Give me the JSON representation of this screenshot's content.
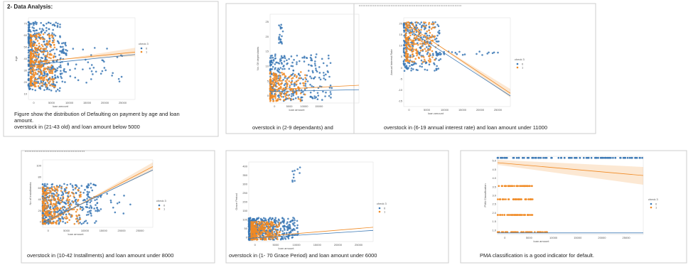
{
  "heading": "2- Data Analysis:",
  "panels": [
    {
      "y_label": "Age",
      "x_label": "loan amount",
      "yticks": [
        "10",
        "20",
        "30",
        "40",
        "50",
        "60",
        "70"
      ],
      "xticks": [
        "0",
        "5000",
        "10000",
        "15000",
        "20000",
        "25000"
      ],
      "legend": {
        "title": "check 3",
        "items": [
          "0",
          "1"
        ]
      },
      "caption": [
        "Figure show the distribution of Defaulting on payment by age and loan amount.",
        "overstock in (21-43 old) and loan amount below 5000"
      ]
    },
    {
      "y_label": "No. Of dependants",
      "x_label": "loan amount",
      "yticks": [
        "0",
        "5",
        "10",
        "15",
        "20",
        "25"
      ],
      "xticks": [
        "0",
        "5000",
        "10000",
        "15000"
      ],
      "caption": [
        "overstock in (2-9 dependants) and"
      ]
    },
    {
      "y_label": "Annual Interest Rate",
      "x_label": "loan amount",
      "yticks": [
        "-15",
        "-10",
        "-5",
        "0",
        "5",
        "10",
        "15",
        "20"
      ],
      "xticks": [
        "0",
        "5000",
        "10000",
        "15000",
        "20000",
        "25000"
      ],
      "legend": {
        "title": "check 3",
        "items": [
          "0",
          "1"
        ]
      },
      "caption": [
        "overstock in (6-19 annual interest rate) and loan amount under 11000"
      ]
    },
    {
      "y_label": "No of Installments",
      "x_label": "loan amount",
      "yticks": [
        "0",
        "20",
        "40",
        "60",
        "80",
        "100"
      ],
      "xticks": [
        "0",
        "5000",
        "10000",
        "15000",
        "20000",
        "25000"
      ],
      "legend": {
        "title": "check 3",
        "items": [
          "0",
          "1"
        ]
      },
      "caption": [
        "overstock in (10-42 Installments) and loan amount under 8000"
      ]
    },
    {
      "y_label": "Grace Period",
      "x_label": "loan amount",
      "yticks": [
        "0",
        "50",
        "100",
        "150",
        "200",
        "250",
        "300",
        "350",
        "400"
      ],
      "xticks": [
        "0",
        "5000",
        "10000",
        "15000",
        "20000",
        "25000"
      ],
      "legend": {
        "title": "check 3",
        "items": [
          "0",
          "1"
        ]
      },
      "caption": [
        "overstock in (1- 70 Grace Period) and loan amount under 6000"
      ]
    },
    {
      "y_label": "PMA Classification",
      "x_label": "loan amount",
      "yticks": [
        "1.0",
        "1.5",
        "2.0",
        "2.5",
        "3.0",
        "3.5",
        "4.0",
        "4.5",
        "5.0"
      ],
      "xticks": [
        "0",
        "5000",
        "10000",
        "15000",
        "20000",
        "25000"
      ],
      "legend": {
        "title": "check 3",
        "items": [
          "0",
          "1"
        ]
      },
      "caption": [
        "PMA classification is a good indicator for default."
      ]
    }
  ]
}
